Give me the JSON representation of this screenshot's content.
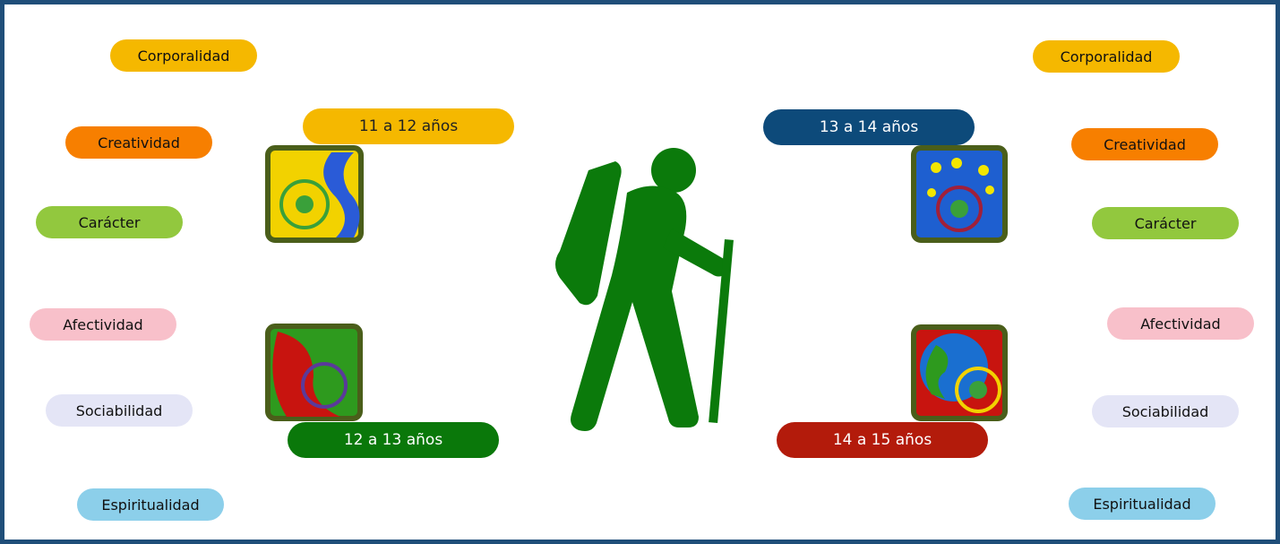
{
  "left_areas": [
    "Corporalidad",
    "Creatividad",
    "Carácter",
    "Afectividad",
    "Sociabilidad",
    "Espiritualidad"
  ],
  "right_areas": [
    "Corporalidad",
    "Creatividad",
    "Carácter",
    "Afectividad",
    "Sociabilidad",
    "Espiritualidad"
  ],
  "stages": [
    "11 a 12 años",
    "12 a 13 años",
    "13 a 14 años",
    "14 a 15 años"
  ]
}
